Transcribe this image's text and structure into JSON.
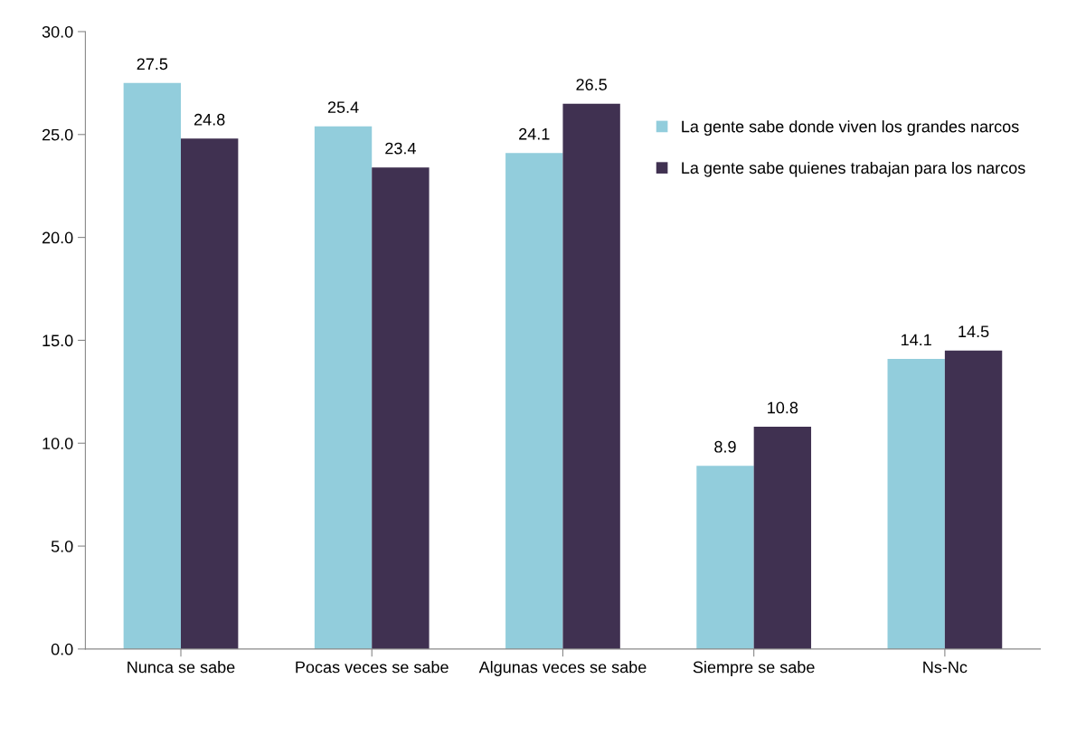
{
  "chart_data": {
    "type": "bar",
    "categories": [
      "Nunca se sabe",
      "Pocas veces se sabe",
      "Algunas veces se sabe",
      "Siempre se sabe",
      "Ns-Nc"
    ],
    "series": [
      {
        "name": "La gente sabe donde viven los grandes narcos",
        "color": "#92cddc",
        "values": [
          27.5,
          25.4,
          24.1,
          8.9,
          14.1
        ]
      },
      {
        "name": "La gente sabe quienes trabajan para los narcos",
        "color": "#403151",
        "values": [
          24.8,
          23.4,
          26.5,
          10.8,
          14.5
        ]
      }
    ],
    "ylim": [
      0,
      30
    ],
    "yticks": [
      {
        "value": 0,
        "label": "0.0"
      },
      {
        "value": 5,
        "label": "5.0"
      },
      {
        "value": 10,
        "label": "10.0"
      },
      {
        "value": 15,
        "label": "15.0"
      },
      {
        "value": 20,
        "label": "20.0"
      },
      {
        "value": 25,
        "label": "25.0"
      },
      {
        "value": 30,
        "label": "30.0"
      }
    ],
    "data_labels": true,
    "legend": "top right",
    "grid": false
  }
}
